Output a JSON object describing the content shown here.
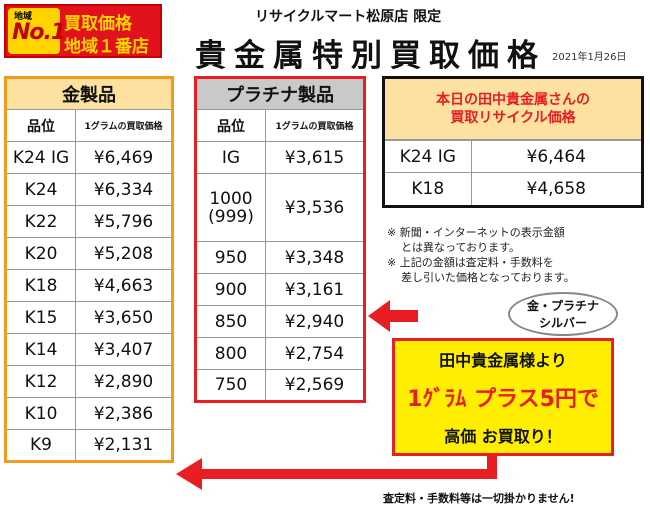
{
  "badge": {
    "chiiki": "地域",
    "no1": "No.1",
    "line1": "買取価格",
    "line2": "地域１番店"
  },
  "header": {
    "store": "リサイクルマート松原店 限定",
    "title": "貴金属特別買取価格",
    "date": "2021年1月26日"
  },
  "gold_table": {
    "title": "金製品",
    "col_grade": "品位",
    "col_price": "1グラムの買取価格",
    "rows": [
      {
        "grade": "K24 IG",
        "price": "¥6,469"
      },
      {
        "grade": "K24",
        "price": "¥6,334"
      },
      {
        "grade": "K22",
        "price": "¥5,796"
      },
      {
        "grade": "K20",
        "price": "¥5,208"
      },
      {
        "grade": "K18",
        "price": "¥4,663"
      },
      {
        "grade": "K15",
        "price": "¥3,650"
      },
      {
        "grade": "K14",
        "price": "¥3,407"
      },
      {
        "grade": "K12",
        "price": "¥2,890"
      },
      {
        "grade": "K10",
        "price": "¥2,386"
      },
      {
        "grade": "K9",
        "price": "¥2,131"
      }
    ]
  },
  "platinum_table": {
    "title": "プラチナ製品",
    "col_grade": "品位",
    "col_price": "1グラムの買取価格",
    "rows": [
      {
        "grade": "IG",
        "price": "¥3,615"
      },
      {
        "grade": "1000\n(999)",
        "price": "¥3,536"
      },
      {
        "grade": "950",
        "price": "¥3,348"
      },
      {
        "grade": "900",
        "price": "¥3,161"
      },
      {
        "grade": "850",
        "price": "¥2,940"
      },
      {
        "grade": "800",
        "price": "¥2,754"
      },
      {
        "grade": "750",
        "price": "¥2,569"
      }
    ]
  },
  "today": {
    "heading_line1": "本日の田中貴金属さんの",
    "heading_line2": "買取リサイクル価格",
    "rows": [
      {
        "grade": "K24 IG",
        "price": "¥6,464"
      },
      {
        "grade": "K18",
        "price": "¥4,658"
      }
    ]
  },
  "notes": {
    "n1a": "※ 新聞・インターネットの表示金額",
    "n1b": "とは異なっております。",
    "n2a": "※ 上記の金額は査定料・手数料を",
    "n2b": "差し引いた価格となっております。"
  },
  "promo": {
    "bubble_line1": "金・プラチナ",
    "bubble_line2": "シルバー",
    "line1": "田中貴金属様より",
    "line2": "1ｸﾞﾗﾑ プラス5円で",
    "line3": "高価 お買取り！"
  },
  "footer": "査定料・手数料等は一切掛かりません!",
  "colors": {
    "red": "#e81e22",
    "gold_border": "#f49a1a",
    "gold_header": "#fde1a0",
    "yellow": "#ffee00"
  }
}
